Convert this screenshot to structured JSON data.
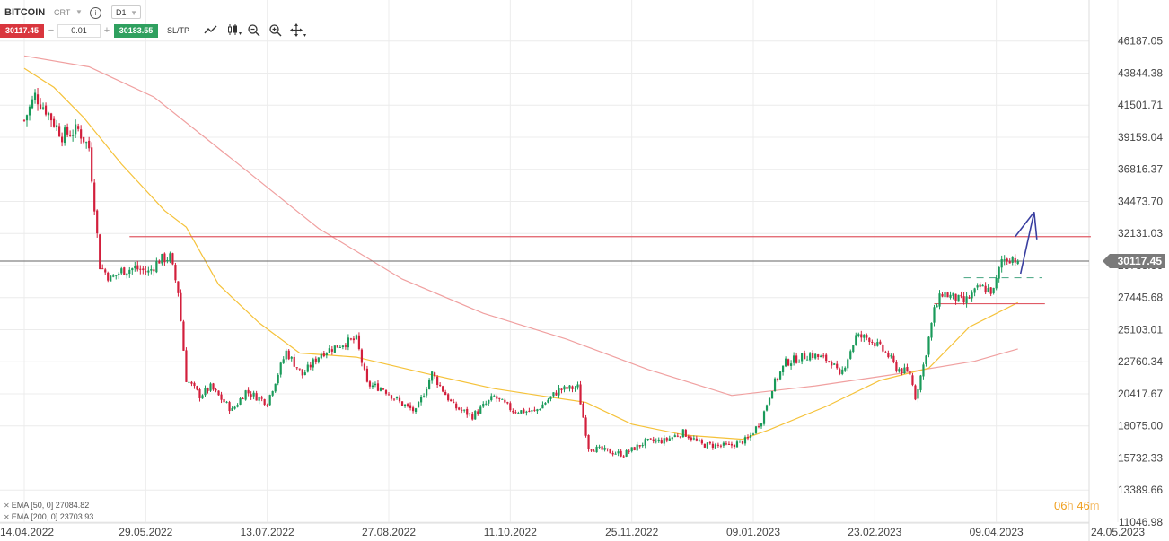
{
  "header": {
    "symbol": "BITCOIN",
    "symbol_type": "CRT",
    "timeframe": "D1",
    "info_icon": "info-icon",
    "bid": "30117.45",
    "ask": "30183.55",
    "lot_size": "0.01",
    "minus": "−",
    "plus": "+",
    "sltp_label": "SL/TP",
    "tools": [
      "line-chart-icon",
      "candlestick-icon",
      "zoom-out-icon",
      "zoom-in-icon",
      "move-icon"
    ]
  },
  "indicators": [
    {
      "label": "EMA [50, 0] 27084.82",
      "color": "#f5c23a"
    },
    {
      "label": "EMA [200, 0] 23703.93",
      "color": "#f28b8b"
    }
  ],
  "countdown": {
    "hours": "06",
    "h": "h",
    "minutes": "46",
    "m": "m"
  },
  "colors": {
    "up": "#1a9a5a",
    "down": "#d21f3c",
    "ema50": "#f5c23a",
    "ema200": "#f0a0a0",
    "level": "#e05b66",
    "arrow": "#3a3fa0",
    "price_line": "#666666",
    "grid": "#ececec",
    "price_label_bg": "#7a7a7a",
    "dashed": "#5aaf8f"
  },
  "chart_data": {
    "type": "candlestick",
    "y_ticks": [
      "46187.05",
      "43844.38",
      "41501.71",
      "39159.04",
      "36816.37",
      "34473.70",
      "32131.03",
      "29788.36",
      "27445.68",
      "25103.01",
      "22760.34",
      "20417.67",
      "18075.00",
      "15732.33",
      "13389.66",
      "11046.98"
    ],
    "x_labels": [
      "14.04.2022",
      "29.05.2022",
      "13.07.2022",
      "27.08.2022",
      "11.10.2022",
      "25.11.2022",
      "09.01.2023",
      "23.02.2023",
      "09.04.2023",
      "24.05.2023"
    ],
    "ylim": [
      11046.98,
      48529.72
    ],
    "current_price": "30117.45",
    "current_price_value": 30117.45,
    "resistance_level": 31900,
    "support_levels": [
      {
        "value": 28900,
        "style": "dashed",
        "from_date": "2023-03-28",
        "to_date": "2023-04-26"
      },
      {
        "value": 27000,
        "style": "solid",
        "from_date": "2023-03-17",
        "to_date": "2023-04-27"
      }
    ],
    "anchors": [
      [
        "2022-04-14",
        40400
      ],
      [
        "2022-04-18",
        42200
      ],
      [
        "2022-04-22",
        41200
      ],
      [
        "2022-04-28",
        39300
      ],
      [
        "2022-05-04",
        39700
      ],
      [
        "2022-05-08",
        38400
      ],
      [
        "2022-05-10",
        34200
      ],
      [
        "2022-05-12",
        29800
      ],
      [
        "2022-05-16",
        28800
      ],
      [
        "2022-05-20",
        29400
      ],
      [
        "2022-05-25",
        29600
      ],
      [
        "2022-05-30",
        29300
      ],
      [
        "2022-06-03",
        30200
      ],
      [
        "2022-06-07",
        30400
      ],
      [
        "2022-06-10",
        27900
      ],
      [
        "2022-06-13",
        21500
      ],
      [
        "2022-06-18",
        20300
      ],
      [
        "2022-06-22",
        20900
      ],
      [
        "2022-06-30",
        19200
      ],
      [
        "2022-07-05",
        20600
      ],
      [
        "2022-07-13",
        19800
      ],
      [
        "2022-07-20",
        23500
      ],
      [
        "2022-07-26",
        21800
      ],
      [
        "2022-08-02",
        23400
      ],
      [
        "2022-08-10",
        24100
      ],
      [
        "2022-08-15",
        24400
      ],
      [
        "2022-08-19",
        21100
      ],
      [
        "2022-08-25",
        20800
      ],
      [
        "2022-08-31",
        19800
      ],
      [
        "2022-09-06",
        19100
      ],
      [
        "2022-09-12",
        21900
      ],
      [
        "2022-09-20",
        19500
      ],
      [
        "2022-09-27",
        18800
      ],
      [
        "2022-10-05",
        20200
      ],
      [
        "2022-10-12",
        19200
      ],
      [
        "2022-10-20",
        19100
      ],
      [
        "2022-10-29",
        20700
      ],
      [
        "2022-11-05",
        20900
      ],
      [
        "2022-11-09",
        16500
      ],
      [
        "2022-11-14",
        16300
      ],
      [
        "2022-11-22",
        16000
      ],
      [
        "2022-11-30",
        16900
      ],
      [
        "2022-12-07",
        17000
      ],
      [
        "2022-12-14",
        17600
      ],
      [
        "2022-12-21",
        16700
      ],
      [
        "2022-12-31",
        16600
      ],
      [
        "2023-01-07",
        17100
      ],
      [
        "2023-01-12",
        18500
      ],
      [
        "2023-01-16",
        20900
      ],
      [
        "2023-01-21",
        22700
      ],
      [
        "2023-01-30",
        23300
      ],
      [
        "2023-02-07",
        22800
      ],
      [
        "2023-02-10",
        21600
      ],
      [
        "2023-02-16",
        24600
      ],
      [
        "2023-02-21",
        24500
      ],
      [
        "2023-02-28",
        23200
      ],
      [
        "2023-03-03",
        22300
      ],
      [
        "2023-03-08",
        21900
      ],
      [
        "2023-03-10",
        20200
      ],
      [
        "2023-03-13",
        22500
      ],
      [
        "2023-03-17",
        26500
      ],
      [
        "2023-03-20",
        27800
      ],
      [
        "2023-03-28",
        27100
      ],
      [
        "2023-04-03",
        28200
      ],
      [
        "2023-04-08",
        27900
      ],
      [
        "2023-04-11",
        30200
      ],
      [
        "2023-04-15",
        30400
      ],
      [
        "2023-04-17",
        30117.45
      ]
    ],
    "ema50": [
      [
        "2022-04-14",
        44200
      ],
      [
        "2022-04-25",
        42800
      ],
      [
        "2022-05-06",
        40600
      ],
      [
        "2022-05-20",
        37200
      ],
      [
        "2022-06-05",
        33800
      ],
      [
        "2022-06-13",
        32600
      ],
      [
        "2022-06-25",
        28400
      ],
      [
        "2022-07-10",
        25600
      ],
      [
        "2022-07-25",
        23400
      ],
      [
        "2022-08-15",
        23100
      ],
      [
        "2022-09-10",
        21900
      ],
      [
        "2022-10-05",
        20800
      ],
      [
        "2022-10-25",
        20200
      ],
      [
        "2022-11-08",
        19800
      ],
      [
        "2022-11-25",
        18200
      ],
      [
        "2022-12-15",
        17400
      ],
      [
        "2023-01-05",
        17100
      ],
      [
        "2023-01-15",
        17800
      ],
      [
        "2023-02-05",
        19500
      ],
      [
        "2023-02-25",
        21400
      ],
      [
        "2023-03-15",
        22300
      ],
      [
        "2023-03-30",
        25300
      ],
      [
        "2023-04-17",
        27084.82
      ]
    ],
    "ema200": [
      [
        "2022-04-14",
        45100
      ],
      [
        "2022-05-08",
        44300
      ],
      [
        "2022-06-01",
        42100
      ],
      [
        "2022-07-01",
        37400
      ],
      [
        "2022-08-01",
        32500
      ],
      [
        "2022-09-01",
        28800
      ],
      [
        "2022-10-01",
        26300
      ],
      [
        "2022-11-01",
        24400
      ],
      [
        "2022-12-01",
        22200
      ],
      [
        "2023-01-01",
        20300
      ],
      [
        "2023-02-01",
        21000
      ],
      [
        "2023-03-01",
        21800
      ],
      [
        "2023-04-01",
        22800
      ],
      [
        "2023-04-17",
        23703.93
      ]
    ],
    "projection": [
      [
        "2023-04-18",
        29200
      ],
      [
        "2023-04-23",
        33700
      ],
      [
        "2023-04-24",
        31700
      ]
    ],
    "projection_arrowhead": [
      [
        "2023-04-16",
        31900
      ],
      [
        "2023-04-23",
        33700
      ]
    ]
  }
}
